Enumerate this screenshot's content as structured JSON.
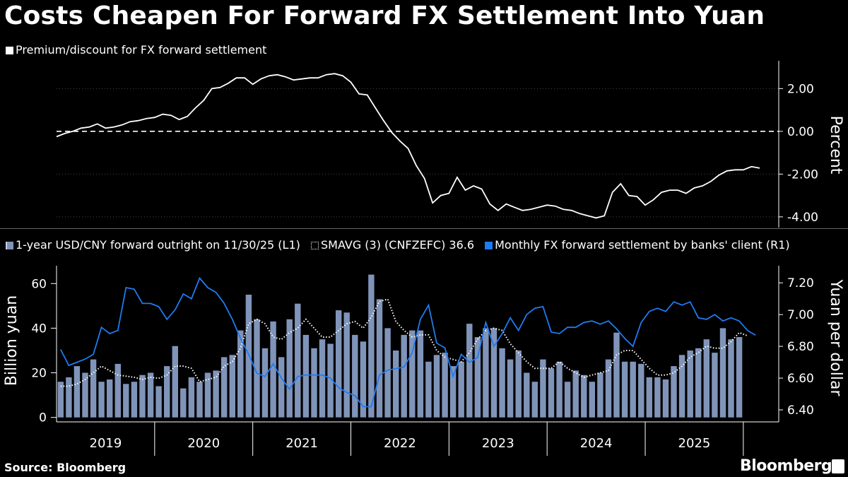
{
  "title": "Costs Cheapen For Forward FX Settlement Into Yuan",
  "source": "Source: Bloomberg",
  "brand": "Bloomberg",
  "colors": {
    "background": "#000000",
    "premium_line": "#ffffff",
    "bars": "#8094b9",
    "smavg": "#ffffff",
    "settlement": "#1f7bf0"
  },
  "chart_data": [
    {
      "type": "line",
      "legend": [
        "Premium/discount for FX forward settlement"
      ],
      "ylabel": "Percent",
      "ylim": [
        -4.5,
        3.3
      ],
      "yticks": [
        "2.00",
        "0.00",
        "-2.00",
        "-4.00"
      ],
      "ytick_values": [
        2,
        0,
        -2,
        -4
      ],
      "reference_line": 0,
      "series": [
        {
          "values": [
            -0.25,
            -0.1,
            0.0,
            0.15,
            0.2,
            0.35,
            0.15,
            0.2,
            0.3,
            0.45,
            0.5,
            0.6,
            0.65,
            0.8,
            0.75,
            0.55,
            0.7,
            1.1,
            1.45,
            2.0,
            2.05,
            2.25,
            2.5,
            2.5,
            2.2,
            2.45,
            2.6,
            2.65,
            2.55,
            2.4,
            2.45,
            2.5,
            2.5,
            2.65,
            2.7,
            2.6,
            2.3,
            1.75,
            1.7,
            1.1,
            0.5,
            -0.05,
            -0.45,
            -0.8,
            -1.6,
            -2.2,
            -3.35,
            -3.0,
            -2.9,
            -2.15,
            -2.75,
            -2.55,
            -2.7,
            -3.4,
            -3.7,
            -3.4,
            -3.55,
            -3.7,
            -3.65,
            -3.55,
            -3.45,
            -3.5,
            -3.65,
            -3.7,
            -3.85,
            -3.95,
            -4.05,
            -3.95,
            -2.85,
            -2.45,
            -3.0,
            -3.05,
            -3.45,
            -3.2,
            -2.85,
            -2.75,
            -2.75,
            -2.9,
            -2.65,
            -2.55,
            -2.35,
            -2.05,
            -1.85,
            -1.8,
            -1.8,
            -1.65,
            -1.72
          ]
        }
      ]
    },
    {
      "type": "bar",
      "legend": [
        "1-year USD/CNY forward outright on 11/30/25 (L1)",
        "SMAVG (3) (CNFZEFC) 36.6",
        "Monthly FX forward settlement by banks' client (R1)"
      ],
      "ylabel_left": "Billion yuan",
      "ylabel_right": "Yuan per dollar",
      "ylim_left": [
        -2,
        68
      ],
      "ylim_right": [
        6.4,
        7.25
      ],
      "yticks_left": [
        "0",
        "20",
        "40",
        "60"
      ],
      "ytick_values_left": [
        0,
        20,
        40,
        60
      ],
      "yticks_right": [
        "7.20",
        "7.00",
        "6.80",
        "6.60",
        "6.40"
      ],
      "ytick_values_right": [
        7.2,
        7.0,
        6.8,
        6.6,
        6.4
      ],
      "xticks": [
        "2019",
        "2020",
        "2021",
        "2022",
        "2023",
        "2024",
        "2025"
      ],
      "bars_start": "2019-01",
      "bars_end": "2025-10",
      "series": [
        {
          "name": "Monthly FX forward settlement by banks' client (R1)",
          "axis": "left",
          "values": [
            16,
            18,
            23,
            20,
            26,
            16,
            17,
            24,
            15,
            16,
            19,
            20,
            14,
            23,
            32,
            13,
            18,
            16,
            20,
            21,
            27,
            28,
            39,
            55,
            44,
            31,
            43,
            27,
            44,
            51,
            37,
            31,
            35,
            33,
            48,
            47,
            37,
            34,
            64,
            53,
            40,
            30,
            37,
            39,
            39,
            25,
            28,
            29,
            23,
            25,
            42,
            36,
            40,
            40,
            31,
            26,
            30,
            20,
            16,
            26,
            22,
            25,
            16,
            21,
            19,
            16,
            20,
            26,
            38,
            25,
            25,
            24,
            18,
            18,
            17,
            23,
            28,
            30,
            31,
            35,
            29,
            40,
            35,
            36
          ]
        },
        {
          "name": "SMAVG (3) (CNFZEFC) 36.6",
          "axis": "left",
          "values": [
            14,
            14,
            15,
            17,
            20,
            23,
            21,
            19,
            18.5,
            18,
            17,
            18,
            17.5,
            19,
            23,
            23,
            22,
            16,
            17,
            18,
            23,
            25,
            31,
            42,
            44,
            42,
            36,
            35,
            38,
            40,
            44,
            40,
            36,
            36,
            39,
            42,
            43,
            40,
            45,
            52,
            53,
            43,
            39,
            36,
            37,
            37,
            30,
            27,
            26,
            25,
            29,
            35,
            39,
            40,
            39,
            33,
            29,
            25,
            22,
            22,
            22,
            25,
            22,
            20,
            18,
            19,
            20,
            21,
            28,
            30,
            30,
            26,
            22,
            19,
            19,
            20,
            23,
            27,
            29,
            32,
            31,
            31,
            34,
            38,
            36.6
          ]
        },
        {
          "name": "1-year USD/CNY forward outright on 11/30/25 (L1)",
          "axis": "right",
          "values": [
            6.78,
            6.68,
            6.7,
            6.72,
            6.75,
            6.92,
            6.88,
            6.9,
            7.17,
            7.16,
            7.07,
            7.07,
            7.05,
            6.97,
            7.03,
            7.13,
            7.1,
            7.23,
            7.17,
            7.14,
            7.07,
            6.97,
            6.85,
            6.75,
            6.63,
            6.61,
            6.69,
            6.6,
            6.53,
            6.61,
            6.62,
            6.62,
            6.62,
            6.6,
            6.54,
            6.51,
            6.49,
            6.42,
            6.42,
            6.62,
            6.65,
            6.66,
            6.67,
            6.76,
            6.97,
            7.06,
            6.82,
            6.79,
            6.61,
            6.75,
            6.7,
            6.73,
            6.95,
            6.8,
            6.88,
            6.98,
            6.9,
            7.0,
            7.04,
            7.05,
            6.89,
            6.88,
            6.92,
            6.92,
            6.95,
            6.96,
            6.94,
            6.96,
            6.91,
            6.85,
            6.8,
            6.95,
            7.02,
            7.04,
            7.02,
            7.08,
            7.06,
            7.08,
            6.98,
            6.97,
            7.0,
            6.96,
            6.98,
            6.96,
            6.9,
            6.87
          ]
        }
      ]
    }
  ]
}
